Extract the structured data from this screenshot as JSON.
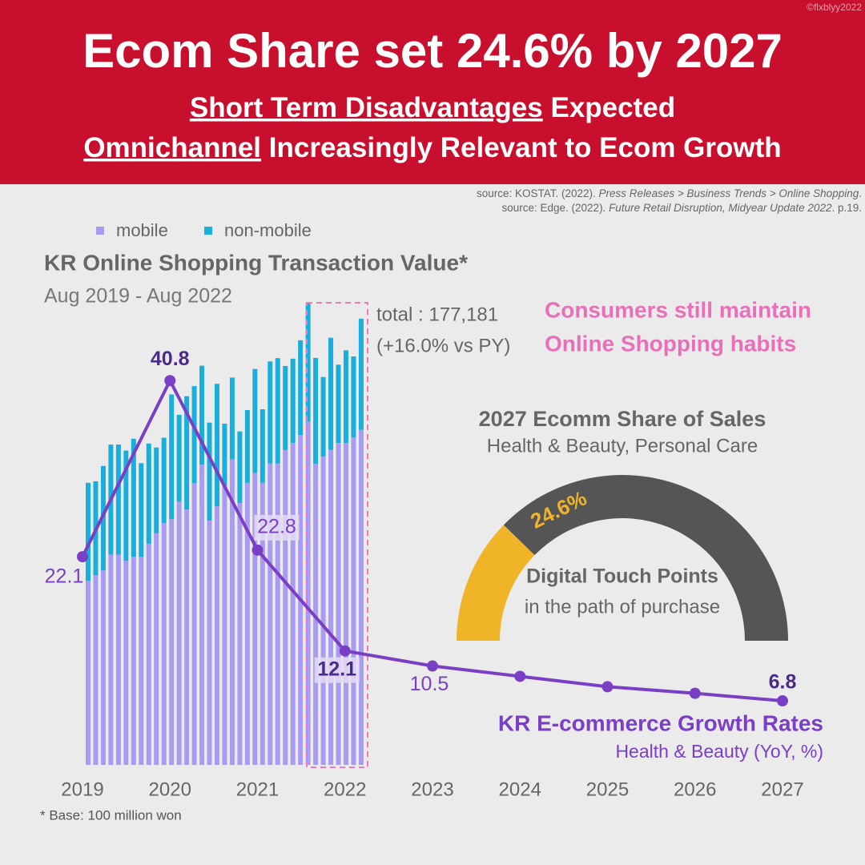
{
  "header": {
    "title": "Ecom Share set 24.6% by 2027",
    "lines": [
      [
        "Short Term Disadvantages",
        " Expected"
      ],
      [
        "Omnichannel",
        " Increasingly Relevant to Ecom Growth"
      ]
    ],
    "credit": "©flxblyy2022"
  },
  "sources": [
    [
      "source: KOSTAT. (2022). ",
      "Press Releases > Business Trends > Online Shopping",
      "."
    ],
    [
      "source: Edge. (2022). ",
      "Future Retail Disruption, Midyear Update 2022",
      ". p.19."
    ]
  ],
  "callout": [
    "Consumers still maintain",
    "Online Shopping habits"
  ],
  "chart_data": [
    {
      "type": "bar",
      "stacked": true,
      "title": "KR Online Shopping Transaction Value*",
      "subtitle": "Aug 2019 - Aug 2022",
      "legend": "top-left",
      "ylim": [
        0,
        180000
      ],
      "annotations": [
        "total : 177,181",
        "(+16.0% vs PY)"
      ],
      "footnote": "* Base: 100 million won",
      "series": [
        {
          "name": "mobile",
          "color": "#a99cf0",
          "values": [
            73100,
            75300,
            77200,
            83500,
            83500,
            81000,
            82600,
            82600,
            87800,
            92000,
            96000,
            97600,
            104500,
            101400,
            111900,
            119200,
            97000,
            102700,
            111000,
            121300,
            104000,
            112000,
            115900,
            112000,
            119700,
            119700,
            125000,
            127800,
            131000,
            136300,
            119500,
            122400,
            125100,
            127800,
            127800,
            130000,
            133000
          ]
        },
        {
          "name": "non-mobile",
          "color": "#1aaedb",
          "values": [
            38900,
            37300,
            41500,
            43700,
            43700,
            43800,
            46900,
            37200,
            39800,
            34000,
            33900,
            49500,
            34500,
            45000,
            38500,
            39300,
            38900,
            48600,
            24500,
            32500,
            28400,
            28900,
            41300,
            29200,
            40500,
            41800,
            33400,
            33500,
            37600,
            47000,
            42100,
            31600,
            44500,
            31100,
            36800,
            32200,
            44181
          ]
        }
      ]
    },
    {
      "type": "line",
      "title": "KR E-commerce Growth Rates",
      "subtitle": "Health & Beauty (YoY, %)",
      "categories": [
        "2019",
        "2020",
        "2021",
        "2022",
        "2023",
        "2024",
        "2025",
        "2026",
        "2027"
      ],
      "values": [
        22.1,
        40.8,
        22.8,
        12.1,
        10.5,
        9.4,
        8.3,
        7.6,
        6.8
      ],
      "value_labels": [
        "22.1",
        "40.8",
        "22.8",
        "12.1",
        "10.5",
        null,
        null,
        null,
        "6.8"
      ],
      "color": "#7a3fc4",
      "ylim": [
        0,
        50
      ]
    },
    {
      "type": "gauge",
      "title": "2027 Ecomm Share of Sales",
      "subtitle": "Health & Beauty, Personal Care",
      "value": 24.6,
      "value_label": "24.6%",
      "range": [
        0,
        100
      ],
      "color": "#f0b429",
      "track_color": "#555555",
      "center_text": [
        "Digital Touch Points",
        "in the path of purchase"
      ]
    }
  ]
}
